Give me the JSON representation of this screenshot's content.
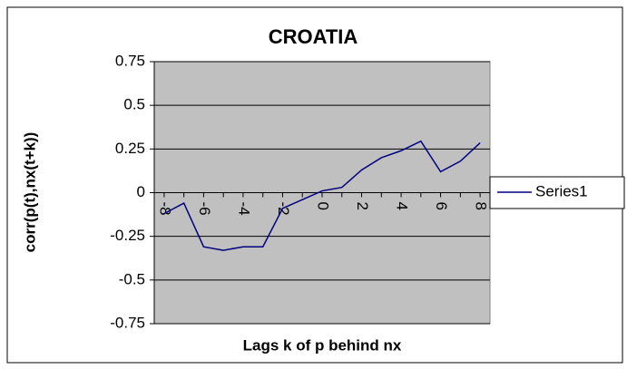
{
  "chart_data": {
    "type": "line",
    "title": "CROATIA",
    "x_label": "Lags k of p behind nx",
    "y_label": "corr(p(t),nx(t+k))",
    "categories": [
      -8,
      null,
      -6,
      null,
      -4,
      null,
      -2,
      null,
      0,
      null,
      2,
      null,
      4,
      null,
      6,
      null,
      8
    ],
    "series": [
      {
        "name": "Series1",
        "color": "#000080",
        "values": [
          -0.12,
          -0.06,
          -0.31,
          -0.33,
          -0.31,
          -0.31,
          -0.09,
          -0.04,
          0.01,
          0.03,
          0.13,
          0.2,
          0.24,
          0.295,
          0.12,
          0.18,
          0.285
        ]
      }
    ],
    "ylim": [
      -0.75,
      0.75
    ],
    "yticks": [
      -0.75,
      -0.5,
      -0.25,
      0,
      0.25,
      0.5,
      0.75
    ],
    "grid": true,
    "legend": "right"
  }
}
